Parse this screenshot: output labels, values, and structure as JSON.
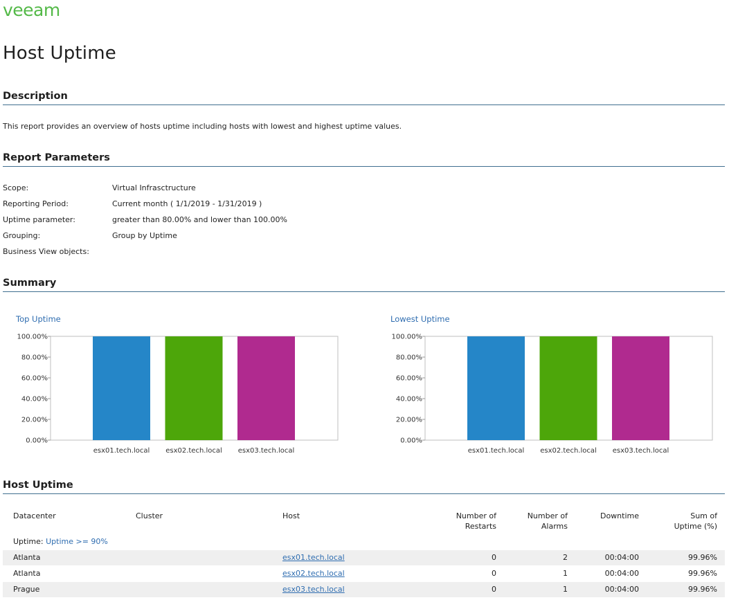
{
  "brand": {
    "logo_text": "veeam",
    "color": "#54b948"
  },
  "page_title": "Host Uptime",
  "description": {
    "heading": "Description",
    "text": "This report provides an overview of hosts uptime including hosts with lowest and highest uptime values."
  },
  "parameters": {
    "heading": "Report Parameters",
    "items": [
      {
        "label": "Scope:",
        "value": "Virtual Infrasctructure"
      },
      {
        "label": "Reporting Period:",
        "value": "Current month ( 1/1/2019 - 1/31/2019 )"
      },
      {
        "label": "Uptime parameter:",
        "value": "greater than 80.00% and lower than 100.00%"
      },
      {
        "label": "Grouping:",
        "value": "Group by Uptime"
      },
      {
        "label": "Business View objects:",
        "value": ""
      }
    ]
  },
  "summary": {
    "heading": "Summary"
  },
  "chart_data": [
    {
      "type": "bar",
      "title": "Top Uptime",
      "categories": [
        "esx01.tech.local",
        "esx02.tech.local",
        "esx03.tech.local"
      ],
      "values": [
        99.96,
        99.96,
        99.96
      ],
      "colors": [
        "#2586c8",
        "#4da60a",
        "#b02a8f"
      ],
      "ylim": [
        0,
        100
      ],
      "yticks": [
        "0.00%",
        "20.00%",
        "40.00%",
        "60.00%",
        "80.00%",
        "100.00%"
      ],
      "grid": false,
      "legend": "none"
    },
    {
      "type": "bar",
      "title": "Lowest Uptime",
      "categories": [
        "esx01.tech.local",
        "esx02.tech.local",
        "esx03.tech.local"
      ],
      "values": [
        99.96,
        99.96,
        99.96
      ],
      "colors": [
        "#2586c8",
        "#4da60a",
        "#b02a8f"
      ],
      "ylim": [
        0,
        100
      ],
      "yticks": [
        "0.00%",
        "20.00%",
        "40.00%",
        "60.00%",
        "80.00%",
        "100.00%"
      ],
      "grid": false,
      "legend": "none"
    }
  ],
  "host_uptime": {
    "heading": "Host Uptime",
    "columns": {
      "datacenter": "Datacenter",
      "cluster": "Cluster",
      "host": "Host",
      "restarts_1": "Number of",
      "restarts_2": "Restarts",
      "alarms_1": "Number of",
      "alarms_2": "Alarms",
      "downtime": "Downtime",
      "uptime_1": "Sum of",
      "uptime_2": "Uptime (%)"
    },
    "group": {
      "label": "Uptime:",
      "value": "Uptime >= 90%"
    },
    "rows": [
      {
        "datacenter": "Atlanta",
        "cluster": "",
        "host": "esx01.tech.local",
        "restarts": "0",
        "alarms": "2",
        "downtime": "00:04:00",
        "uptime": "99.96%"
      },
      {
        "datacenter": "Atlanta",
        "cluster": "",
        "host": "esx02.tech.local",
        "restarts": "0",
        "alarms": "1",
        "downtime": "00:04:00",
        "uptime": "99.96%"
      },
      {
        "datacenter": "Prague",
        "cluster": "",
        "host": "esx03.tech.local",
        "restarts": "0",
        "alarms": "1",
        "downtime": "00:04:00",
        "uptime": "99.96%"
      }
    ]
  }
}
